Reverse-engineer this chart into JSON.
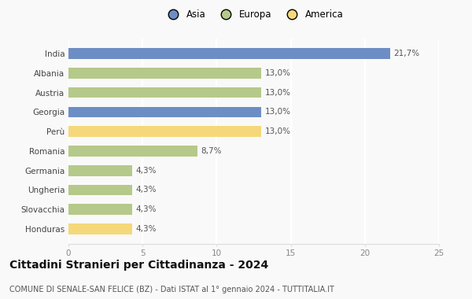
{
  "countries": [
    "India",
    "Albania",
    "Austria",
    "Georgia",
    "Perù",
    "Romania",
    "Germania",
    "Ungheria",
    "Slovacchia",
    "Honduras"
  ],
  "values": [
    21.7,
    13.0,
    13.0,
    13.0,
    13.0,
    8.7,
    4.3,
    4.3,
    4.3,
    4.3
  ],
  "labels": [
    "21,7%",
    "13,0%",
    "13,0%",
    "13,0%",
    "13,0%",
    "8,7%",
    "4,3%",
    "4,3%",
    "4,3%",
    "4,3%"
  ],
  "colors": [
    "#6d8ec4",
    "#b5c98a",
    "#b5c98a",
    "#6d8ec4",
    "#f5d87a",
    "#b5c98a",
    "#b5c98a",
    "#b5c98a",
    "#b5c98a",
    "#f5d87a"
  ],
  "legend": {
    "Asia": "#6d8ec4",
    "Europa": "#b5c98a",
    "America": "#f5d87a"
  },
  "xlim": [
    0,
    25
  ],
  "xticks": [
    0,
    5,
    10,
    15,
    20,
    25
  ],
  "title": "Cittadini Stranieri per Cittadinanza - 2024",
  "subtitle": "COMUNE DI SENALE-SAN FELICE (BZ) - Dati ISTAT al 1° gennaio 2024 - TUTTITALIA.IT",
  "background_color": "#f9f9f9",
  "bar_height": 0.55,
  "grid_color": "#ffffff",
  "label_fontsize": 7.5,
  "ytick_fontsize": 7.5,
  "xtick_fontsize": 7.5,
  "title_fontsize": 10,
  "subtitle_fontsize": 7
}
